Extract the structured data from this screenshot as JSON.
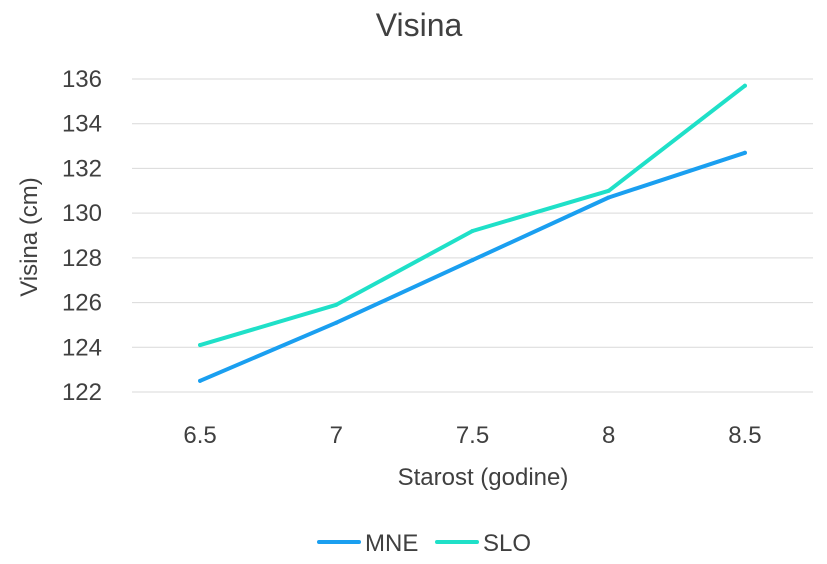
{
  "chart_data": {
    "type": "line",
    "title": "Visina",
    "xlabel": "Starost (godine)",
    "ylabel": "Visina (cm)",
    "x": [
      "6.5",
      "7",
      "7.5",
      "8",
      "8.5"
    ],
    "ylim": [
      122,
      136
    ],
    "yticks": [
      122,
      124,
      126,
      128,
      130,
      132,
      134,
      136
    ],
    "grid": true,
    "legend_position": "bottom",
    "series": [
      {
        "name": "MNE",
        "color": "#1a9ff0",
        "values": [
          122.5,
          125.1,
          127.9,
          130.7,
          132.7
        ]
      },
      {
        "name": "SLO",
        "color": "#1fe0c8",
        "values": [
          124.1,
          125.9,
          129.2,
          131.0,
          135.7
        ]
      }
    ]
  }
}
